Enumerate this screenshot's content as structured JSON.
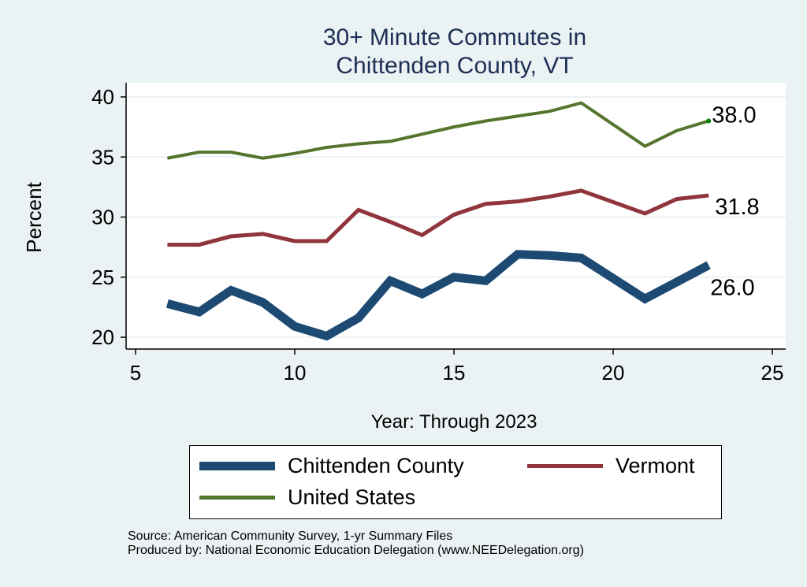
{
  "chart_data": {
    "type": "line",
    "title": [
      "30+ Minute Commutes in",
      "Chittenden County, VT"
    ],
    "xlabel": "Year: Through 2023",
    "ylabel": "Percent",
    "xlim": [
      5,
      25
    ],
    "ylim": [
      20,
      40
    ],
    "xticks": [
      5,
      10,
      15,
      20,
      25
    ],
    "yticks": [
      20,
      25,
      30,
      35,
      40
    ],
    "grid": "horizontal",
    "legend_position": "bottom",
    "series": [
      {
        "name": "Chittenden County",
        "color": "#1c4a73",
        "x": [
          6,
          7,
          8,
          9,
          10,
          11,
          12,
          13,
          14,
          15,
          16,
          17,
          18,
          19,
          21,
          22,
          23
        ],
        "y": [
          22.8,
          22.1,
          23.9,
          22.9,
          20.9,
          20.1,
          21.6,
          24.7,
          23.6,
          25.0,
          24.7,
          26.9,
          26.8,
          26.6,
          23.2,
          24.6,
          26.0
        ],
        "end_label": "26.0"
      },
      {
        "name": "Vermont",
        "color": "#90353b",
        "x": [
          6,
          7,
          8,
          9,
          10,
          11,
          12,
          13,
          14,
          15,
          16,
          17,
          18,
          19,
          21,
          22,
          23
        ],
        "y": [
          27.7,
          27.7,
          28.4,
          28.6,
          28.0,
          28.0,
          30.6,
          29.6,
          28.5,
          30.2,
          31.1,
          31.3,
          31.7,
          32.2,
          30.3,
          31.5,
          31.8
        ],
        "end_label": "31.8"
      },
      {
        "name": "United States",
        "color": "#55752f",
        "x": [
          6,
          7,
          8,
          9,
          10,
          11,
          12,
          13,
          14,
          15,
          16,
          17,
          18,
          19,
          21,
          22,
          23
        ],
        "y": [
          34.9,
          35.4,
          35.4,
          34.9,
          35.3,
          35.8,
          36.1,
          36.3,
          36.9,
          37.5,
          38.0,
          38.4,
          38.8,
          39.5,
          35.9,
          37.2,
          38.0
        ],
        "end_label": "38.0"
      }
    ]
  },
  "source_lines": [
    "Source: American Community Survey, 1-yr Summary Files",
    "Produced by: National Economic Education Delegation (www.NEEDelegation.org)"
  ]
}
